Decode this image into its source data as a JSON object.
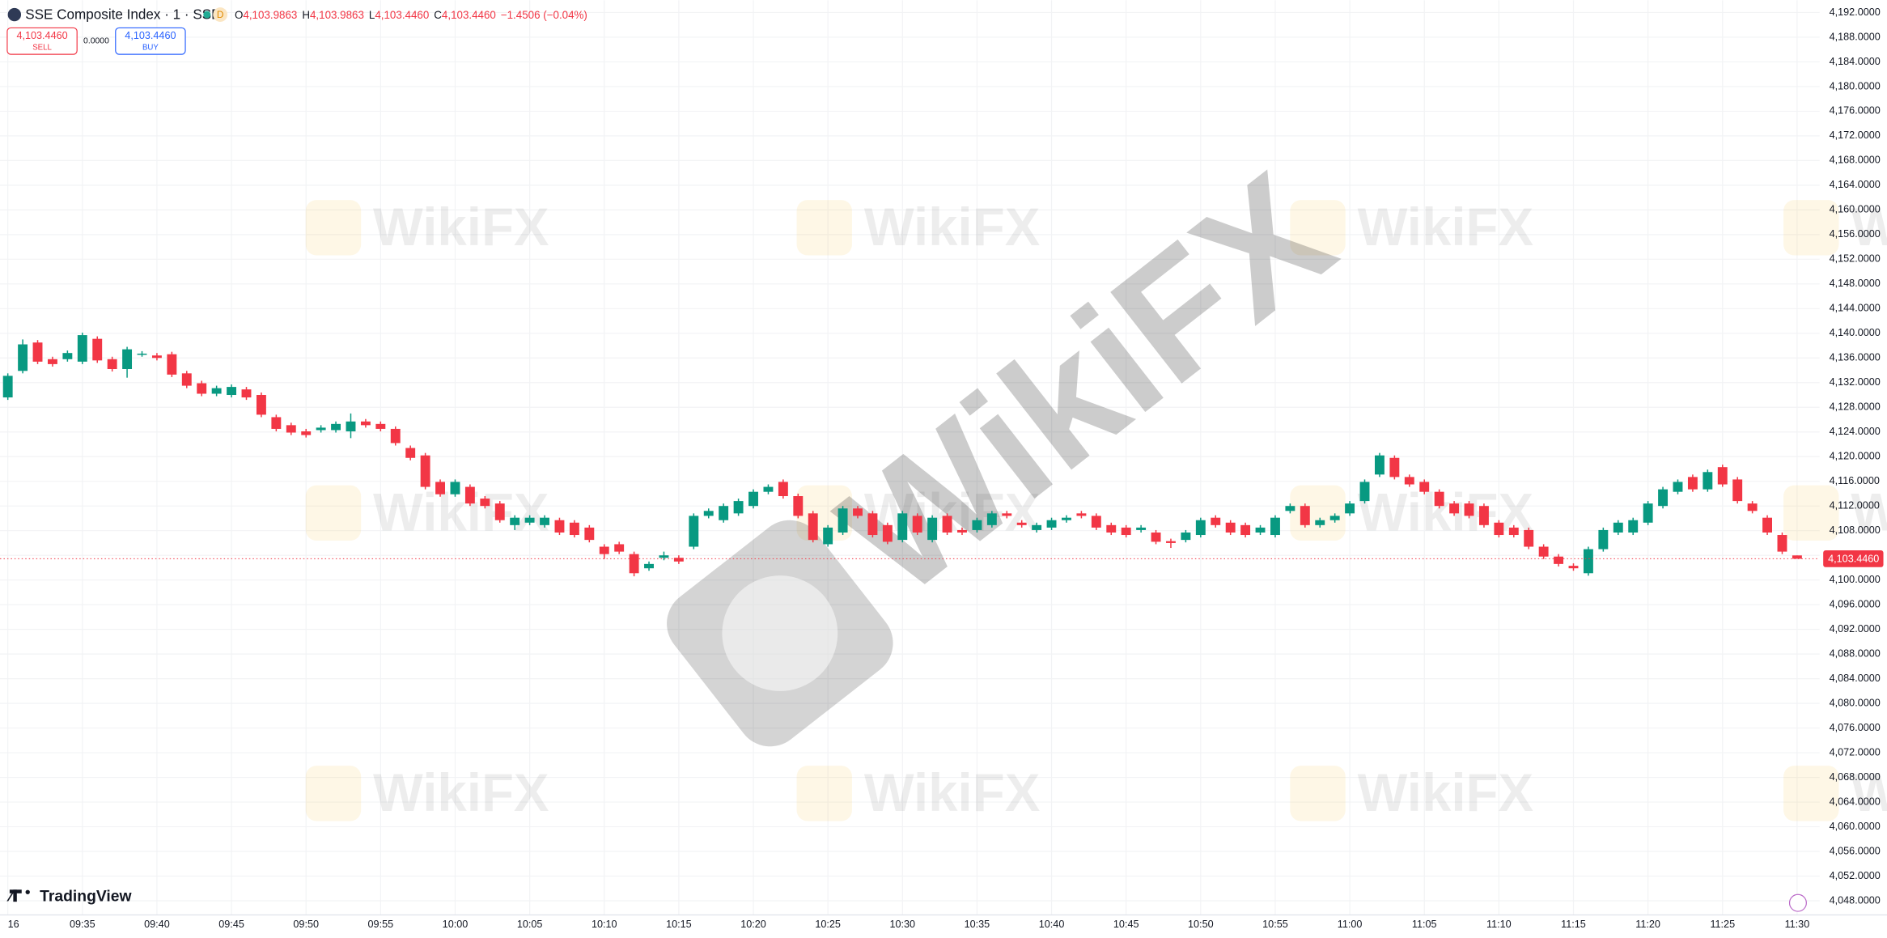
{
  "header": {
    "title": "SSE Composite Index · 1 · SSE",
    "interval_badge": "D",
    "ohlc": [
      {
        "key": "O",
        "value": "4,103.9863"
      },
      {
        "key": "H",
        "value": "4,103.9863"
      },
      {
        "key": "L",
        "value": "4,103.4460"
      },
      {
        "key": "C",
        "value": "4,103.4460"
      }
    ],
    "change": "−1.4506 (−0.04%)"
  },
  "trade": {
    "sell_price": "4,103.4460",
    "sell": "SELL",
    "spread": "0.0000",
    "buy_price": "4,103.4460",
    "buy": "BUY"
  },
  "branding": "TradingView",
  "watermark": "WikiFX",
  "chart_data": {
    "type": "candlestick",
    "up_color": "#089981",
    "down_color": "#f23645",
    "grid": true,
    "categories": [
      "16",
      null,
      null,
      null,
      null,
      "09:35",
      null,
      null,
      null,
      null,
      "09:40",
      null,
      null,
      null,
      null,
      "09:45",
      null,
      null,
      null,
      null,
      "09:50",
      null,
      null,
      null,
      null,
      "09:55",
      null,
      null,
      null,
      null,
      "10:00",
      null,
      null,
      null,
      null,
      "10:05",
      null,
      null,
      null,
      null,
      "10:10",
      null,
      null,
      null,
      null,
      "10:15",
      null,
      null,
      null,
      null,
      "10:20",
      null,
      null,
      null,
      null,
      "10:25",
      null,
      null,
      null,
      null,
      "10:30",
      null,
      null,
      null,
      null,
      "10:35",
      null,
      null,
      null,
      null,
      "10:40",
      null,
      null,
      null,
      null,
      "10:45",
      null,
      null,
      null,
      null,
      "10:50",
      null,
      null,
      null,
      null,
      "10:55",
      null,
      null,
      null,
      null,
      "11:00",
      null,
      null,
      null,
      null,
      "11:05",
      null,
      null,
      null,
      null,
      "11:10",
      null,
      null,
      null,
      null,
      "11:15",
      null,
      null,
      null,
      null,
      "11:20",
      null,
      null,
      null,
      null,
      "11:25",
      null,
      null,
      null,
      null,
      "11:30"
    ],
    "open": [
      4129.6,
      4133.9,
      4138.5,
      4135.8,
      4135.8,
      4135.4,
      4139.1,
      4135.8,
      4134.2,
      4136.6,
      4136.4,
      4136.6,
      4133.5,
      4131.9,
      4130.2,
      4130.0,
      4130.9,
      4130.0,
      4126.4,
      4125.1,
      4124.1,
      4124.3,
      4124.3,
      4124.1,
      4125.7,
      4125.3,
      4124.5,
      4121.4,
      4120.2,
      4115.9,
      4113.9,
      4115.1,
      4113.2,
      4112.4,
      4108.9,
      4109.3,
      4108.9,
      4109.7,
      4109.3,
      4108.5,
      4105.4,
      4105.8,
      4104.2,
      4101.9,
      4103.6,
      4103.6,
      4105.4,
      4110.4,
      4109.7,
      4110.8,
      4112.0,
      4114.3,
      4115.9,
      4113.6,
      4110.8,
      4105.8,
      4107.7,
      4111.6,
      4110.8,
      4108.9,
      4106.5,
      4110.4,
      4106.5,
      4110.4,
      4108.1,
      4108.1,
      4108.9,
      4110.8,
      4109.3,
      4108.1,
      4108.5,
      4109.7,
      4110.8,
      4110.4,
      4108.9,
      4108.5,
      4108.1,
      4107.7,
      4106.3,
      4106.5,
      4107.3,
      4110.1,
      4109.3,
      4108.9,
      4107.7,
      4107.3,
      4111.2,
      4112.0,
      4108.9,
      4109.7,
      4110.8,
      4112.8,
      4117.1,
      4119.8,
      4116.7,
      4115.9,
      4114.3,
      4112.4,
      4112.4,
      4112.0,
      4109.3,
      4108.5,
      4108.1,
      4105.4,
      4103.8,
      4102.3,
      4101.1,
      4105.0,
      4107.7,
      4107.7,
      4109.3,
      4112.0,
      4114.3,
      4116.7,
      4114.7,
      4118.3,
      4116.3,
      4112.4,
      4110.1,
      4107.3,
      4103.9863
    ],
    "high": [
      4133.5,
      4139.0,
      4138.9,
      4136.2,
      4137.2,
      4140.1,
      4139.5,
      4136.2,
      4137.8,
      4137.1,
      4136.8,
      4137.0,
      4133.9,
      4132.3,
      4131.5,
      4131.7,
      4131.3,
      4130.4,
      4126.8,
      4125.5,
      4124.5,
      4125.1,
      4125.7,
      4127.0,
      4126.1,
      4125.7,
      4124.9,
      4121.8,
      4120.6,
      4116.3,
      4116.3,
      4115.5,
      4113.6,
      4112.8,
      4110.5,
      4110.5,
      4110.5,
      4110.1,
      4109.7,
      4108.9,
      4105.8,
      4106.2,
      4104.6,
      4103.0,
      4104.6,
      4104.0,
      4110.8,
      4111.6,
      4112.4,
      4113.2,
      4114.7,
      4115.5,
      4116.3,
      4114.0,
      4111.2,
      4108.9,
      4112.0,
      4112.0,
      4111.2,
      4109.3,
      4111.2,
      4110.8,
      4110.5,
      4110.8,
      4108.5,
      4110.1,
      4111.2,
      4111.2,
      4109.7,
      4109.3,
      4110.1,
      4110.5,
      4111.2,
      4110.8,
      4109.3,
      4108.9,
      4108.9,
      4108.1,
      4106.7,
      4108.1,
      4110.1,
      4110.5,
      4109.7,
      4109.3,
      4108.9,
      4110.5,
      4112.4,
      4112.4,
      4110.1,
      4110.8,
      4112.8,
      4116.3,
      4120.6,
      4120.2,
      4117.1,
      4116.3,
      4114.7,
      4112.8,
      4112.8,
      4112.4,
      4109.7,
      4108.9,
      4108.5,
      4105.8,
      4104.2,
      4102.7,
      4105.4,
      4108.5,
      4109.7,
      4110.1,
      4112.8,
      4115.1,
      4116.3,
      4117.1,
      4117.9,
      4118.7,
      4116.7,
      4112.8,
      4110.5,
      4107.7,
      4103.9863
    ],
    "low": [
      4129.2,
      4133.5,
      4135.0,
      4134.6,
      4135.4,
      4135.0,
      4135.2,
      4133.8,
      4132.8,
      4136.2,
      4135.6,
      4132.9,
      4131.1,
      4129.8,
      4129.8,
      4129.6,
      4129.2,
      4126.4,
      4124.1,
      4123.5,
      4123.1,
      4123.9,
      4123.9,
      4123.0,
      4124.7,
      4124.1,
      4121.8,
      4119.4,
      4114.7,
      4113.5,
      4113.5,
      4112.0,
      4111.6,
      4109.3,
      4108.1,
      4108.9,
      4108.5,
      4107.3,
      4106.9,
      4106.1,
      4103.4,
      4104.2,
      4100.6,
      4101.5,
      4103.2,
      4102.6,
      4105.0,
      4110.0,
      4109.3,
      4110.4,
      4111.6,
      4113.9,
      4113.2,
      4110.0,
      4106.1,
      4105.4,
      4107.3,
      4110.0,
      4106.9,
      4105.8,
      4106.1,
      4107.3,
      4106.1,
      4107.3,
      4107.3,
      4107.7,
      4108.5,
      4110.0,
      4108.5,
      4107.7,
      4108.1,
      4109.3,
      4110.0,
      4108.1,
      4107.3,
      4106.9,
      4107.7,
      4105.8,
      4105.2,
      4106.1,
      4106.9,
      4108.5,
      4107.3,
      4106.9,
      4107.3,
      4106.9,
      4110.8,
      4108.5,
      4108.5,
      4109.3,
      4110.4,
      4112.4,
      4116.7,
      4116.3,
      4115.1,
      4113.9,
      4111.6,
      4110.4,
      4110.0,
      4108.5,
      4106.9,
      4106.9,
      4105.0,
      4103.4,
      4102.2,
      4101.5,
      4100.7,
      4104.6,
      4107.3,
      4107.3,
      4108.9,
      4111.6,
      4113.9,
      4114.3,
      4114.3,
      4115.1,
      4112.4,
      4110.8,
      4107.3,
      4104.2,
      4103.446
    ],
    "close": [
      4133.1,
      4138.2,
      4135.4,
      4135.0,
      4136.8,
      4139.7,
      4135.6,
      4134.2,
      4137.4,
      4136.7,
      4136.0,
      4133.3,
      4131.5,
      4130.2,
      4131.1,
      4131.3,
      4129.6,
      4126.8,
      4124.5,
      4123.9,
      4123.5,
      4124.7,
      4125.3,
      4125.7,
      4125.1,
      4124.5,
      4122.2,
      4119.8,
      4115.1,
      4113.9,
      4115.9,
      4112.4,
      4112.0,
      4109.7,
      4110.1,
      4110.1,
      4110.1,
      4107.7,
      4107.3,
      4106.5,
      4104.2,
      4104.6,
      4101.1,
      4102.6,
      4104.0,
      4103.0,
      4110.4,
      4111.2,
      4112.0,
      4112.8,
      4114.3,
      4115.1,
      4113.6,
      4110.4,
      4106.5,
      4108.5,
      4111.6,
      4110.4,
      4107.3,
      4106.2,
      4110.8,
      4107.7,
      4110.1,
      4107.7,
      4107.7,
      4109.7,
      4110.8,
      4110.4,
      4108.9,
      4108.9,
      4109.7,
      4110.1,
      4110.4,
      4108.5,
      4107.7,
      4107.3,
      4108.5,
      4106.2,
      4106.0,
      4107.7,
      4109.7,
      4108.9,
      4107.7,
      4107.3,
      4108.5,
      4110.1,
      4112.0,
      4108.9,
      4109.7,
      4110.4,
      4112.4,
      4115.9,
      4120.2,
      4116.7,
      4115.5,
      4114.3,
      4112.0,
      4110.8,
      4110.4,
      4108.9,
      4107.3,
      4107.3,
      4105.4,
      4103.8,
      4102.6,
      4101.9,
      4105.0,
      4108.1,
      4109.3,
      4109.7,
      4112.4,
      4114.7,
      4115.9,
      4114.7,
      4117.5,
      4115.5,
      4112.8,
      4111.2,
      4107.7,
      4104.6,
      4103.446
    ],
    "ylim": [
      4045.7,
      4194.0
    ],
    "yticks": [
      {
        "value": 4048,
        "label": "4,048.0000"
      },
      {
        "value": 4052,
        "label": "4,052.0000"
      },
      {
        "value": 4056,
        "label": "4,056.0000"
      },
      {
        "value": 4060,
        "label": "4,060.0000"
      },
      {
        "value": 4064,
        "label": "4,064.0000"
      },
      {
        "value": 4068,
        "label": "4,068.0000"
      },
      {
        "value": 4072,
        "label": "4,072.0000"
      },
      {
        "value": 4076,
        "label": "4,076.0000"
      },
      {
        "value": 4080,
        "label": "4,080.0000"
      },
      {
        "value": 4084,
        "label": "4,084.0000"
      },
      {
        "value": 4088,
        "label": "4,088.0000"
      },
      {
        "value": 4092,
        "label": "4,092.0000"
      },
      {
        "value": 4096,
        "label": "4,096.0000"
      },
      {
        "value": 4100,
        "label": "4,100.0000"
      },
      {
        "value": 4104,
        "label": "4,104.0000"
      },
      {
        "value": 4108,
        "label": "4,108.0000"
      },
      {
        "value": 4112,
        "label": "4,112.0000"
      },
      {
        "value": 4116,
        "label": "4,116.0000"
      },
      {
        "value": 4120,
        "label": "4,120.0000"
      },
      {
        "value": 4124,
        "label": "4,124.0000"
      },
      {
        "value": 4128,
        "label": "4,128.0000"
      },
      {
        "value": 4132,
        "label": "4,132.0000"
      },
      {
        "value": 4136,
        "label": "4,136.0000"
      },
      {
        "value": 4140,
        "label": "4,140.0000"
      },
      {
        "value": 4144,
        "label": "4,144.0000"
      },
      {
        "value": 4148,
        "label": "4,148.0000"
      },
      {
        "value": 4152,
        "label": "4,152.0000"
      },
      {
        "value": 4156,
        "label": "4,156.0000"
      },
      {
        "value": 4160,
        "label": "4,160.0000"
      },
      {
        "value": 4164,
        "label": "4,164.0000"
      },
      {
        "value": 4168,
        "label": "4,168.0000"
      },
      {
        "value": 4172,
        "label": "4,172.0000"
      },
      {
        "value": 4176,
        "label": "4,176.0000"
      },
      {
        "value": 4180,
        "label": "4,180.0000"
      },
      {
        "value": 4184,
        "label": "4,184.0000"
      },
      {
        "value": 4188,
        "label": "4,188.0000"
      },
      {
        "value": 4192,
        "label": "4,192.0000"
      }
    ],
    "last_price": {
      "value": 4103.446,
      "label": "4,103.4460"
    }
  }
}
